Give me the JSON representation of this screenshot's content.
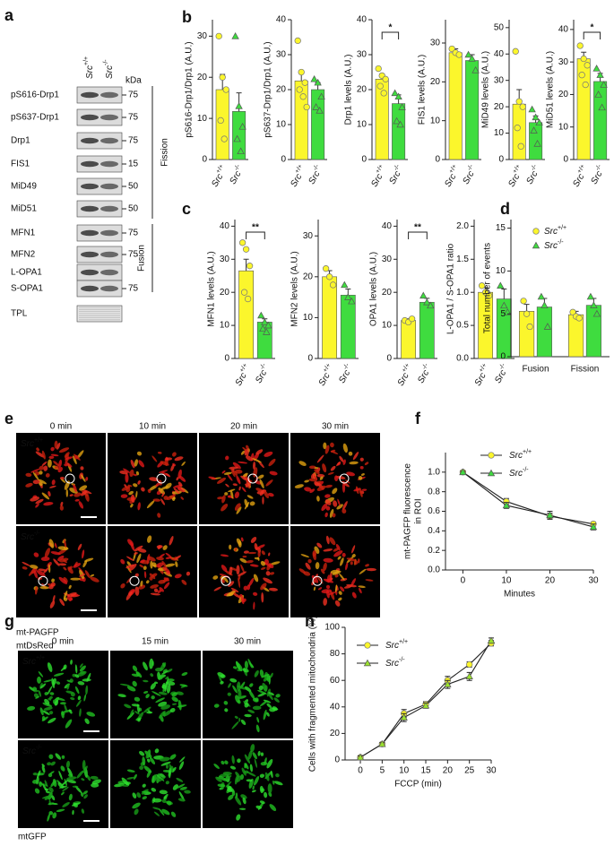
{
  "figure": {
    "panel_labels": [
      "a",
      "b",
      "c",
      "d",
      "e",
      "f",
      "g",
      "h"
    ],
    "blot": {
      "columns": [
        {
          "text": "Src",
          "sup": "+/+"
        },
        {
          "text": "Src",
          "sup": "-/-"
        }
      ],
      "unit": "kDa",
      "rows": [
        {
          "label": "pS616-Drp1",
          "marker": "75"
        },
        {
          "label": "pS637-Drp1",
          "marker": "75"
        },
        {
          "label": "Drp1",
          "marker": "75"
        },
        {
          "label": "FIS1",
          "marker": "15"
        },
        {
          "label": "MiD49",
          "marker": "50"
        },
        {
          "label": "MiD51",
          "marker": "50"
        },
        {
          "label": "MFN1",
          "marker": "75"
        },
        {
          "label": "MFN2",
          "marker": "75"
        },
        {
          "label": "L-OPA1"
        },
        {
          "label": "S-OPA1",
          "marker": "75"
        },
        {
          "label": "TPL"
        }
      ],
      "groups": [
        "Fission",
        "Fusion"
      ]
    },
    "live_imaging": {
      "times": [
        "0 min",
        "10 min",
        "20 min",
        "30 min"
      ],
      "genotypes": [
        {
          "text": "Src",
          "sup": "+/+"
        },
        {
          "text": "Src",
          "sup": "-/-"
        }
      ],
      "channels": [
        "mt-PAGFP",
        "mtDsRed"
      ]
    },
    "fccp_imaging": {
      "times": [
        "0 min",
        "15 min",
        "30 min"
      ],
      "genotypes": [
        {
          "text": "Src",
          "sup": "+/+"
        },
        {
          "text": "Src",
          "sup": "-/-"
        }
      ],
      "channels": [
        "mtGFP"
      ]
    }
  },
  "chart_data": [
    {
      "type": "bar",
      "ylabel": "pS616-Drp1/Drp1 (A.U.)",
      "categories": [
        {
          "text": "Src",
          "sup": "+/+"
        },
        {
          "text": "Src",
          "sup": "-/-"
        }
      ],
      "colors": [
        "#fbf62c",
        "#3fdc3f"
      ],
      "values": [
        17,
        11.7
      ],
      "errors": [
        3.7,
        4.5
      ],
      "points": [
        [
          30,
          20,
          17,
          9.5,
          5
        ],
        [
          30,
          13,
          8,
          5,
          2
        ]
      ],
      "ylim": [
        0,
        34
      ],
      "yticks": [
        0,
        10,
        20,
        30
      ]
    },
    {
      "type": "bar",
      "ylabel": "pS637-Drp1/Drp1 (A.U.)",
      "categories": [
        {
          "text": "Src",
          "sup": "+/+"
        },
        {
          "text": "Src",
          "sup": "-/-"
        }
      ],
      "colors": [
        "#fbf62c",
        "#3fdc3f"
      ],
      "values": [
        22.5,
        20
      ],
      "errors": [
        2.5,
        2
      ],
      "points": [
        [
          34,
          25,
          22,
          20,
          18,
          15
        ],
        [
          23,
          22,
          18,
          15,
          14
        ]
      ],
      "ylim": [
        0,
        40
      ],
      "yticks": [
        0,
        10,
        20,
        30,
        40
      ]
    },
    {
      "type": "bar",
      "ylabel": "Drp1 levels (A.U.)",
      "categories": [
        {
          "text": "Src",
          "sup": "+/+"
        },
        {
          "text": "Src",
          "sup": "-/-"
        }
      ],
      "colors": [
        "#fbf62c",
        "#3fdc3f"
      ],
      "values": [
        23,
        16
      ],
      "errors": [
        1.5,
        2.5
      ],
      "points": [
        [
          26,
          24,
          23,
          21,
          19
        ],
        [
          19,
          18,
          15,
          11,
          10
        ]
      ],
      "ylim": [
        0,
        40
      ],
      "yticks": [
        0,
        10,
        20,
        30,
        40
      ],
      "significance": "*"
    },
    {
      "type": "bar",
      "ylabel": "FIS1 levels (A.U.)",
      "categories": [
        {
          "text": "Src",
          "sup": "+/+"
        },
        {
          "text": "Src",
          "sup": "-/-"
        }
      ],
      "colors": [
        "#fbf62c",
        "#3fdc3f"
      ],
      "values": [
        27.5,
        25.5
      ],
      "errors": [
        1,
        1.5
      ],
      "points": [
        [
          28.5,
          27.5,
          27
        ],
        [
          27,
          26,
          23
        ]
      ],
      "ylim": [
        0,
        36
      ],
      "yticks": [
        0,
        10,
        20,
        30
      ]
    },
    {
      "type": "bar",
      "ylabel": "MiD49 levels (A.U.)",
      "categories": [
        {
          "text": "Src",
          "sup": "+/+"
        },
        {
          "text": "Src",
          "sup": "-/-"
        }
      ],
      "colors": [
        "#fbf62c",
        "#3fdc3f"
      ],
      "values": [
        21,
        14
      ],
      "errors": [
        5.5,
        2.5
      ],
      "points": [
        [
          41,
          22,
          20,
          12,
          5
        ],
        [
          19,
          16,
          14,
          11,
          6
        ]
      ],
      "ylim": [
        0,
        53
      ],
      "yticks": [
        0,
        10,
        20,
        30,
        40,
        50
      ]
    },
    {
      "type": "bar",
      "ylabel": "MiD51 levels (A.U.)",
      "categories": [
        {
          "text": "Src",
          "sup": "+/+"
        },
        {
          "text": "Src",
          "sup": "-/-"
        }
      ],
      "colors": [
        "#fbf62c",
        "#3fdc3f"
      ],
      "values": [
        31,
        24
      ],
      "errors": [
        2,
        2.5
      ],
      "points": [
        [
          35,
          31,
          29,
          26,
          23
        ],
        [
          28,
          26,
          23,
          20,
          16
        ]
      ],
      "ylim": [
        0,
        43
      ],
      "yticks": [
        0,
        10,
        20,
        30,
        40
      ],
      "significance": "*"
    },
    {
      "type": "bar",
      "ylabel": "MFN1 levels (A.U.)",
      "categories": [
        {
          "text": "Src",
          "sup": "+/+"
        },
        {
          "text": "Src",
          "sup": "-/-"
        }
      ],
      "colors": [
        "#fbf62c",
        "#3fdc3f"
      ],
      "values": [
        26.5,
        11
      ],
      "errors": [
        3.5,
        1
      ],
      "points": [
        [
          35,
          33,
          28,
          20,
          18
        ],
        [
          13,
          11,
          10,
          9,
          8
        ]
      ],
      "ylim": [
        0,
        42
      ],
      "yticks": [
        0,
        10,
        20,
        30,
        40
      ],
      "significance": "**"
    },
    {
      "type": "bar",
      "ylabel": "MFN2 levels (A.U.)",
      "categories": [
        {
          "text": "Src",
          "sup": "+/+"
        },
        {
          "text": "Src",
          "sup": "-/-"
        }
      ],
      "colors": [
        "#fbf62c",
        "#3fdc3f"
      ],
      "values": [
        20,
        15.5
      ],
      "errors": [
        1.5,
        1.5
      ],
      "points": [
        [
          22,
          20,
          18
        ],
        [
          18,
          15,
          14
        ]
      ],
      "ylim": [
        0,
        34
      ],
      "yticks": [
        0,
        10,
        20,
        30
      ]
    },
    {
      "type": "bar",
      "ylabel": "OPA1 levels (A.U.)",
      "categories": [
        {
          "text": "Src",
          "sup": "+/+"
        },
        {
          "text": "Src",
          "sup": "-/-"
        }
      ],
      "colors": [
        "#fbf62c",
        "#3fdc3f"
      ],
      "values": [
        11.5,
        17
      ],
      "errors": [
        0.5,
        1.2
      ],
      "points": [
        [
          11.5,
          11,
          12
        ],
        [
          19,
          17,
          16
        ]
      ],
      "ylim": [
        0,
        42
      ],
      "yticks": [
        0,
        10,
        20,
        30,
        40
      ],
      "significance": "**"
    },
    {
      "type": "bar",
      "ylabel": "L-OPA1 / S-OPA1 ratio",
      "categories": [
        {
          "text": "Src",
          "sup": "+/+"
        },
        {
          "text": "Src",
          "sup": "-/-"
        }
      ],
      "colors": [
        "#fbf62c",
        "#3fdc3f"
      ],
      "values": [
        1.0,
        0.9
      ],
      "errors": [
        0.07,
        0.15
      ],
      "points": [
        [
          1.1,
          1.0,
          0.95
        ],
        [
          1.1,
          0.8,
          0.7
        ]
      ],
      "ylim": [
        0,
        2.1
      ],
      "yticks": [
        {
          "value": 0,
          "label": "0.0"
        },
        0.5,
        {
          "value": 1,
          "label": "1.0"
        },
        1.5,
        {
          "value": 2,
          "label": "2.0"
        }
      ]
    },
    {
      "type": "grouped_bar",
      "ylabel": "Total number of events",
      "categories": [
        "Fusion",
        "Fission"
      ],
      "ylim": [
        0,
        16
      ],
      "yticks": [
        0,
        5,
        10,
        15
      ],
      "series": [
        {
          "name": {
            "text": "Src",
            "sup": "+/+"
          },
          "color": "#fbf62c",
          "values": [
            5.3,
            4.9
          ],
          "errors": [
            0.8,
            0.4
          ],
          "points": [
            [
              6.5,
              5,
              3.5
            ],
            [
              5.2,
              4.7,
              4.5
            ]
          ]
        },
        {
          "name": {
            "text": "Src",
            "sup": "-/-"
          },
          "color": "#3fdc3f",
          "values": [
            5.8,
            6.0
          ],
          "errors": [
            1.0,
            0.8
          ],
          "points": [
            [
              7,
              6,
              3.5
            ],
            [
              7,
              6,
              5
            ]
          ]
        }
      ]
    },
    {
      "type": "line",
      "ylabel": [
        "mt-PAGFP fluorescence",
        "in ROI"
      ],
      "xlabel": "Minutes",
      "x": [
        0,
        10,
        20,
        30
      ],
      "xlim": [
        -4,
        30
      ],
      "xticks": [
        0,
        10,
        20,
        30
      ],
      "ylim": [
        0,
        1.2
      ],
      "yticks": [
        {
          "value": 0,
          "label": "0.0"
        },
        0.2,
        0.4,
        0.6,
        0.8,
        {
          "value": 1,
          "label": "1.0"
        }
      ],
      "series": [
        {
          "name": {
            "text": "Src",
            "sup": "+/+"
          },
          "color": "#fbf62c",
          "values": [
            1.0,
            0.7,
            0.55,
            0.47
          ],
          "errors": [
            0.01,
            0.03,
            0.03,
            0.02
          ]
        },
        {
          "name": {
            "text": "Src",
            "sup": "-/-"
          },
          "color": "#3fdc3f",
          "values": [
            1.0,
            0.66,
            0.56,
            0.44
          ],
          "errors": [
            0.01,
            0.03,
            0.04,
            0.03
          ]
        }
      ]
    },
    {
      "type": "line",
      "ylabel": [
        "Cells with fragmented mitochondria (%)"
      ],
      "xlabel": "FCCP (min)",
      "x": [
        0,
        5,
        10,
        15,
        20,
        25,
        30
      ],
      "xlim": [
        -3.5,
        30
      ],
      "xticks": [
        0,
        5,
        10,
        15,
        20,
        25,
        30
      ],
      "ylim": [
        0,
        100
      ],
      "yticks": [
        0,
        20,
        40,
        60,
        80,
        100
      ],
      "series": [
        {
          "name": {
            "text": "Src",
            "sup": "+/+"
          },
          "color": "#fbf62c",
          "values": [
            2,
            12,
            35,
            42,
            60,
            72,
            88
          ],
          "errors": [
            1,
            1,
            3,
            2,
            3,
            2,
            2
          ]
        },
        {
          "name": {
            "text": "Src",
            "sup": "-/-"
          },
          "color": "#9be22e",
          "values": [
            2,
            12,
            32,
            41,
            57,
            63,
            90
          ],
          "errors": [
            1,
            1,
            3,
            2,
            3,
            3,
            2
          ]
        }
      ]
    }
  ]
}
